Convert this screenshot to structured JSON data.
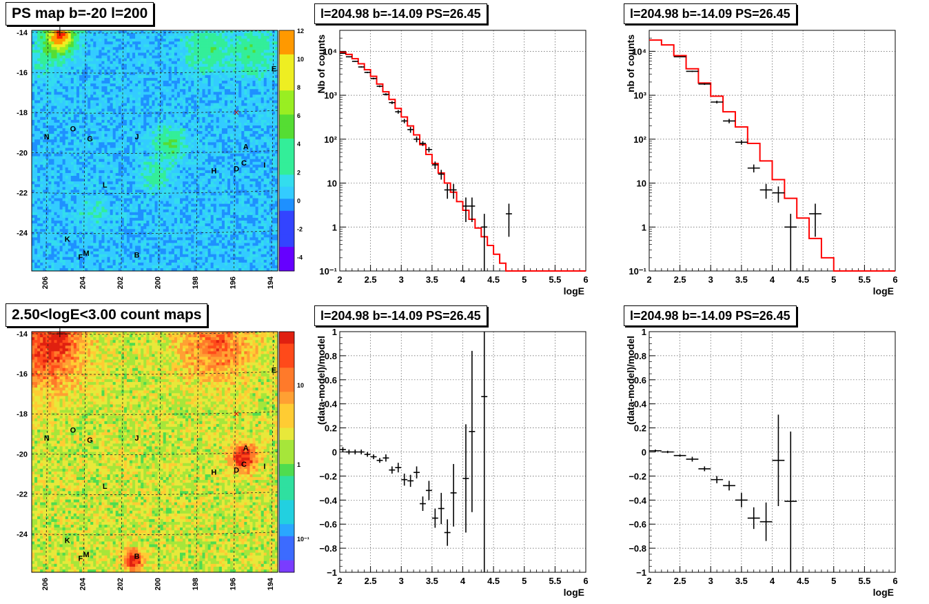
{
  "panels": {
    "map_top": {
      "title": "PS map b=-20 l=200",
      "colorbar_ticks": [
        "12",
        "10",
        "8",
        "6",
        "4",
        "2",
        "0",
        "-2",
        "-4"
      ]
    },
    "map_bottom": {
      "title": "2.50<logE<3.00 count maps",
      "colorbar_ticks": [
        "10",
        "1",
        "10⁻¹"
      ]
    },
    "spec_left": {
      "title": "l=204.98 b=-14.09 PS=26.45"
    },
    "spec_right": {
      "title": "l=204.98 b=-14.09 PS=26.45"
    },
    "res_left": {
      "title": "l=204.98 b=-14.09 PS=26.45"
    },
    "res_right": {
      "title": "l=204.98 b=-14.09 PS=26.45"
    }
  },
  "map_axes": {
    "y_ticks": [
      "-14",
      "-16",
      "-18",
      "-20",
      "-22",
      "-24"
    ],
    "x_ticks": [
      "206",
      "204",
      "202",
      "200",
      "198",
      "196",
      "194"
    ]
  },
  "map_labels": [
    {
      "t": "O",
      "x": 204.6,
      "y": -18.8
    },
    {
      "t": "N",
      "x": 206.0,
      "y": -19.2
    },
    {
      "t": "G",
      "x": 203.7,
      "y": -19.3
    },
    {
      "t": "J",
      "x": 201.2,
      "y": -19.2
    },
    {
      "t": "A",
      "x": 195.4,
      "y": -19.7
    },
    {
      "t": "C",
      "x": 195.5,
      "y": -20.5
    },
    {
      "t": "D",
      "x": 195.9,
      "y": -20.8
    },
    {
      "t": "H",
      "x": 197.1,
      "y": -20.9
    },
    {
      "t": "I",
      "x": 194.4,
      "y": -20.6
    },
    {
      "t": "E",
      "x": 193.9,
      "y": -15.8
    },
    {
      "t": "L",
      "x": 202.9,
      "y": -21.6
    },
    {
      "t": "K",
      "x": 204.9,
      "y": -24.3
    },
    {
      "t": "M",
      "x": 203.9,
      "y": -25.0
    },
    {
      "t": "F",
      "x": 204.2,
      "y": -25.2
    },
    {
      "t": "B",
      "x": 201.2,
      "y": -25.1
    }
  ],
  "chart_data": [
    {
      "type": "line",
      "title": "l=204.98 b=-14.09 PS=26.45",
      "xlabel": "logE",
      "ylabel": "Nb of counts",
      "xlim": [
        2,
        6
      ],
      "ylim": [
        0.1,
        30000
      ],
      "yscale": "log",
      "grid": true,
      "x_ticks": [
        "2",
        "2.5",
        "3",
        "3.5",
        "4",
        "4.5",
        "5",
        "5.5",
        "6"
      ],
      "y_ticks": [
        "10⁻¹",
        "1",
        "10",
        "10²",
        "10³",
        "10⁴"
      ],
      "series": [
        {
          "kind": "model-step",
          "color": "#ff0000",
          "bin_width": 0.1,
          "x": [
            2.0,
            2.1,
            2.2,
            2.3,
            2.4,
            2.5,
            2.6,
            2.7,
            2.8,
            2.9,
            3.0,
            3.1,
            3.2,
            3.3,
            3.4,
            3.5,
            3.6,
            3.7,
            3.8,
            3.9,
            4.0,
            4.1,
            4.2,
            4.3,
            4.4,
            4.5,
            4.6,
            4.7,
            4.8,
            4.9,
            5.0,
            5.1,
            5.2,
            5.3,
            5.4,
            5.5,
            5.6,
            5.7,
            5.8,
            5.9
          ],
          "y": [
            9500,
            8500,
            6800,
            5200,
            3800,
            2700,
            1800,
            1200,
            800,
            500,
            320,
            200,
            125,
            75,
            45,
            28,
            17,
            10,
            6.2,
            3.8,
            2.4,
            1.5,
            0.95,
            0.6,
            0.38,
            0.24,
            0.15,
            0.1,
            0.1,
            0.1,
            0.1,
            0.1,
            0.1,
            0.1,
            0.1,
            0.1,
            0.1,
            0.1,
            0.1,
            0.1
          ]
        },
        {
          "kind": "data",
          "color": "#000000",
          "x_halfwidth": 0.05,
          "points": [
            {
              "x": 2.05,
              "y": 9000,
              "lo": 8800,
              "hi": 9200
            },
            {
              "x": 2.15,
              "y": 7500,
              "lo": 7300,
              "hi": 7700
            },
            {
              "x": 2.25,
              "y": 5900,
              "lo": 5750,
              "hi": 6050
            },
            {
              "x": 2.35,
              "y": 4400,
              "lo": 4250,
              "hi": 4550
            },
            {
              "x": 2.45,
              "y": 3300,
              "lo": 3180,
              "hi": 3420
            },
            {
              "x": 2.55,
              "y": 2400,
              "lo": 2300,
              "hi": 2500
            },
            {
              "x": 2.65,
              "y": 1600,
              "lo": 1520,
              "hi": 1680
            },
            {
              "x": 2.75,
              "y": 1050,
              "lo": 990,
              "hi": 1110
            },
            {
              "x": 2.85,
              "y": 680,
              "lo": 630,
              "hi": 730
            },
            {
              "x": 2.95,
              "y": 420,
              "lo": 380,
              "hi": 460
            },
            {
              "x": 3.05,
              "y": 260,
              "lo": 230,
              "hi": 290
            },
            {
              "x": 3.15,
              "y": 165,
              "lo": 140,
              "hi": 190
            },
            {
              "x": 3.25,
              "y": 100,
              "lo": 85,
              "hi": 115
            },
            {
              "x": 3.35,
              "y": 80,
              "lo": 70,
              "hi": 90
            },
            {
              "x": 3.45,
              "y": 58,
              "lo": 50,
              "hi": 66
            },
            {
              "x": 3.55,
              "y": 26,
              "lo": 21,
              "hi": 31
            },
            {
              "x": 3.65,
              "y": 16,
              "lo": 12,
              "hi": 20
            },
            {
              "x": 3.75,
              "y": 7,
              "lo": 4.4,
              "hi": 9.6
            },
            {
              "x": 3.85,
              "y": 7,
              "lo": 4.4,
              "hi": 9.6
            },
            {
              "x": 4.05,
              "y": 3,
              "lo": 1.3,
              "hi": 4.7
            },
            {
              "x": 4.15,
              "y": 3,
              "lo": 1.3,
              "hi": 4.7
            },
            {
              "x": 4.35,
              "y": 1,
              "lo": 0.1,
              "hi": 2
            },
            {
              "x": 4.75,
              "y": 2,
              "lo": 0.6,
              "hi": 3.4
            }
          ]
        }
      ]
    },
    {
      "type": "line",
      "title": "l=204.98 b=-14.09 PS=26.45",
      "xlabel": "logE",
      "ylabel": "nb of counts",
      "xlim": [
        2,
        6
      ],
      "ylim": [
        0.1,
        30000
      ],
      "yscale": "log",
      "grid": true,
      "x_ticks": [
        "2",
        "2.5",
        "3",
        "3.5",
        "4",
        "4.5",
        "5",
        "5.5",
        "6"
      ],
      "y_ticks": [
        "10⁻¹",
        "1",
        "10",
        "10²",
        "10³",
        "10⁴"
      ],
      "series": [
        {
          "kind": "model-step",
          "color": "#ff0000",
          "bin_width": 0.2,
          "x": [
            2.0,
            2.2,
            2.4,
            2.6,
            2.8,
            3.0,
            3.2,
            3.4,
            3.6,
            3.8,
            4.0,
            4.2,
            4.4,
            4.6,
            4.8,
            5.0,
            5.2,
            5.4,
            5.6,
            5.8
          ],
          "y": [
            18000,
            14000,
            8000,
            4000,
            1900,
            950,
            420,
            190,
            80,
            32,
            12,
            4.5,
            1.6,
            0.55,
            0.2,
            0.1,
            0.1,
            0.1,
            0.1,
            0.1
          ]
        },
        {
          "kind": "data",
          "color": "#000000",
          "x_halfwidth": 0.1,
          "points": [
            {
              "x": 2.5,
              "y": 7500,
              "lo": 7300,
              "hi": 7700
            },
            {
              "x": 2.7,
              "y": 3500,
              "lo": 3380,
              "hi": 3620
            },
            {
              "x": 2.9,
              "y": 1800,
              "lo": 1720,
              "hi": 1880
            },
            {
              "x": 3.1,
              "y": 700,
              "lo": 650,
              "hi": 750
            },
            {
              "x": 3.3,
              "y": 260,
              "lo": 230,
              "hi": 290
            },
            {
              "x": 3.5,
              "y": 85,
              "lo": 75,
              "hi": 95
            },
            {
              "x": 3.7,
              "y": 22,
              "lo": 17.5,
              "hi": 26.5
            },
            {
              "x": 3.9,
              "y": 7,
              "lo": 4.4,
              "hi": 9.6
            },
            {
              "x": 4.1,
              "y": 6,
              "lo": 3.6,
              "hi": 8.4
            },
            {
              "x": 4.3,
              "y": 1,
              "lo": 0.1,
              "hi": 2
            },
            {
              "x": 4.7,
              "y": 2,
              "lo": 0.6,
              "hi": 3.4
            }
          ]
        }
      ]
    },
    {
      "type": "scatter",
      "title": "l=204.98 b=-14.09 PS=26.45",
      "xlabel": "logE",
      "ylabel": "(data-model)/model",
      "xlim": [
        2,
        6
      ],
      "ylim": [
        -1,
        1
      ],
      "grid": true,
      "x_ticks": [
        "2",
        "2.5",
        "3",
        "3.5",
        "4",
        "4.5",
        "5",
        "5.5",
        "6"
      ],
      "y_ticks": [
        "−1",
        "−0.8",
        "−0.6",
        "−0.4",
        "−0.2",
        "0",
        "0.2",
        "0.4",
        "0.6",
        "0.8",
        "1"
      ],
      "series": [
        {
          "kind": "data",
          "color": "#000000",
          "x_halfwidth": 0.05,
          "points": [
            {
              "x": 2.05,
              "y": 0.02,
              "lo": 0.0,
              "hi": 0.04
            },
            {
              "x": 2.15,
              "y": 0.0,
              "lo": -0.02,
              "hi": 0.02
            },
            {
              "x": 2.25,
              "y": 0.0,
              "lo": -0.02,
              "hi": 0.02
            },
            {
              "x": 2.35,
              "y": 0.0,
              "lo": -0.02,
              "hi": 0.02
            },
            {
              "x": 2.45,
              "y": -0.02,
              "lo": -0.04,
              "hi": 0.0
            },
            {
              "x": 2.55,
              "y": -0.04,
              "lo": -0.06,
              "hi": -0.02
            },
            {
              "x": 2.65,
              "y": -0.07,
              "lo": -0.09,
              "hi": -0.05
            },
            {
              "x": 2.75,
              "y": -0.05,
              "lo": -0.08,
              "hi": -0.02
            },
            {
              "x": 2.85,
              "y": -0.15,
              "lo": -0.18,
              "hi": -0.12
            },
            {
              "x": 2.95,
              "y": -0.13,
              "lo": -0.17,
              "hi": -0.09
            },
            {
              "x": 3.05,
              "y": -0.23,
              "lo": -0.28,
              "hi": -0.18
            },
            {
              "x": 3.15,
              "y": -0.24,
              "lo": -0.29,
              "hi": -0.19
            },
            {
              "x": 3.25,
              "y": -0.17,
              "lo": -0.22,
              "hi": -0.12
            },
            {
              "x": 3.35,
              "y": -0.43,
              "lo": -0.49,
              "hi": -0.37
            },
            {
              "x": 3.45,
              "y": -0.32,
              "lo": -0.4,
              "hi": -0.24
            },
            {
              "x": 3.55,
              "y": -0.55,
              "lo": -0.63,
              "hi": -0.47
            },
            {
              "x": 3.65,
              "y": -0.47,
              "lo": -0.6,
              "hi": -0.34
            },
            {
              "x": 3.75,
              "y": -0.67,
              "lo": -0.78,
              "hi": -0.56
            },
            {
              "x": 3.85,
              "y": -0.34,
              "lo": -0.62,
              "hi": -0.1
            },
            {
              "x": 4.05,
              "y": -0.22,
              "lo": -0.67,
              "hi": 0.23
            },
            {
              "x": 4.15,
              "y": 0.17,
              "lo": -0.5,
              "hi": 0.84
            },
            {
              "x": 4.35,
              "y": 0.46,
              "lo": -1.0,
              "hi": 1.0
            }
          ]
        }
      ]
    },
    {
      "type": "scatter",
      "title": "l=204.98 b=-14.09 PS=26.45",
      "xlabel": "logE",
      "ylabel": "(data-model)/model",
      "xlim": [
        2,
        6
      ],
      "ylim": [
        -1,
        1
      ],
      "grid": true,
      "x_ticks": [
        "2",
        "2.5",
        "3",
        "3.5",
        "4",
        "4.5",
        "5",
        "5.5",
        "6"
      ],
      "y_ticks": [
        "−1",
        "−0.8",
        "−0.6",
        "−0.4",
        "−0.2",
        "0",
        "0.2",
        "0.4",
        "0.6",
        "0.8",
        "1"
      ],
      "series": [
        {
          "kind": "data",
          "color": "#000000",
          "x_halfwidth": 0.1,
          "points": [
            {
              "x": 2.1,
              "y": 0.01,
              "lo": 0.0,
              "hi": 0.02
            },
            {
              "x": 2.3,
              "y": 0.0,
              "lo": -0.01,
              "hi": 0.01
            },
            {
              "x": 2.5,
              "y": -0.03,
              "lo": -0.04,
              "hi": -0.02
            },
            {
              "x": 2.7,
              "y": -0.06,
              "lo": -0.08,
              "hi": -0.04
            },
            {
              "x": 2.9,
              "y": -0.14,
              "lo": -0.16,
              "hi": -0.12
            },
            {
              "x": 3.1,
              "y": -0.23,
              "lo": -0.26,
              "hi": -0.2
            },
            {
              "x": 3.3,
              "y": -0.28,
              "lo": -0.32,
              "hi": -0.24
            },
            {
              "x": 3.5,
              "y": -0.4,
              "lo": -0.46,
              "hi": -0.34
            },
            {
              "x": 3.7,
              "y": -0.55,
              "lo": -0.64,
              "hi": -0.46
            },
            {
              "x": 3.9,
              "y": -0.58,
              "lo": -0.74,
              "hi": -0.42
            },
            {
              "x": 4.1,
              "y": -0.07,
              "lo": -0.45,
              "hi": 0.31
            },
            {
              "x": 4.3,
              "y": -0.41,
              "lo": -1.0,
              "hi": 0.17
            }
          ]
        }
      ]
    }
  ]
}
